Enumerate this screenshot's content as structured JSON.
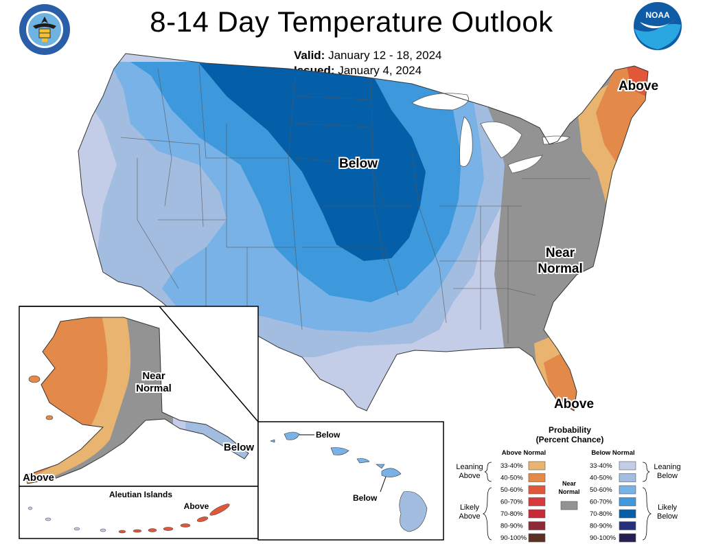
{
  "title": "8-14 Day Temperature Outlook",
  "valid": {
    "label": "Valid:",
    "value": "January 12 - 18, 2024"
  },
  "issued": {
    "label": "Issued:",
    "value": "January 4, 2024"
  },
  "logos": {
    "left": "department-of-commerce-seal",
    "right_text": "NOAA"
  },
  "map_labels": {
    "conus_below": "Below",
    "conus_above_ne": "Above",
    "conus_near_normal_1": "Near",
    "conus_near_normal_2": "Normal",
    "conus_above_fl": "Above",
    "alaska_near_1": "Near",
    "alaska_near_2": "Normal",
    "alaska_below": "Below",
    "alaska_above": "Above",
    "aleutian_title": "Aleutian Islands",
    "aleutian_above": "Above",
    "hawaii_below_1": "Below",
    "hawaii_below_2": "Below"
  },
  "legend": {
    "title_1": "Probability",
    "title_2": "(Percent Chance)",
    "above_header": "Above Normal",
    "below_header": "Below Normal",
    "near_normal_1": "Near",
    "near_normal_2": "Normal",
    "leaning_above_1": "Leaning",
    "leaning_above_2": "Above",
    "likely_above_1": "Likely",
    "likely_above_2": "Above",
    "leaning_below_1": "Leaning",
    "leaning_below_2": "Below",
    "likely_below_1": "Likely",
    "likely_below_2": "Below",
    "above_bins": [
      {
        "range": "33-40%",
        "color": "#e8b470"
      },
      {
        "range": "40-50%",
        "color": "#e3894a"
      },
      {
        "range": "50-60%",
        "color": "#e0573a"
      },
      {
        "range": "60-70%",
        "color": "#d9393b"
      },
      {
        "range": "70-80%",
        "color": "#c82a3a"
      },
      {
        "range": "80-90%",
        "color": "#8c2a36"
      },
      {
        "range": "90-100%",
        "color": "#5a3023"
      }
    ],
    "below_bins": [
      {
        "range": "33-40%",
        "color": "#c3cde8"
      },
      {
        "range": "40-50%",
        "color": "#a3bde0"
      },
      {
        "range": "50-60%",
        "color": "#78b2e6"
      },
      {
        "range": "60-70%",
        "color": "#3d98dc"
      },
      {
        "range": "70-80%",
        "color": "#055fa8"
      },
      {
        "range": "80-90%",
        "color": "#27307a"
      },
      {
        "range": "90-100%",
        "color": "#261f52"
      }
    ],
    "near_normal_color": "#939393"
  }
}
